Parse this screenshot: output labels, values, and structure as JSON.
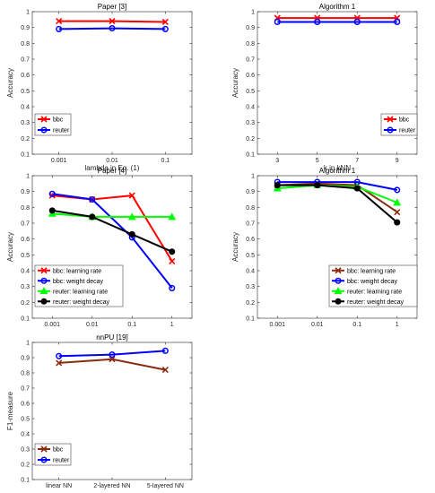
{
  "chart_data": [
    {
      "type": "line",
      "title": "Paper [3]",
      "xlabel": "lambda in Eq. (1)",
      "ylabel": "Accuracy",
      "categories": [
        "0.001",
        "0.01",
        "0.1"
      ],
      "ylim": [
        0.1,
        1
      ],
      "yticks": [
        "0.1",
        "0.2",
        "0.3",
        "0.4",
        "0.5",
        "0.6",
        "0.7",
        "0.8",
        "0.9",
        "1"
      ],
      "grid": false,
      "legend_position": "bottom-left",
      "series": [
        {
          "name": "bbc",
          "values": [
            0.94,
            0.94,
            0.935
          ],
          "color": "#ff0000",
          "marker": "x"
        },
        {
          "name": "reuter",
          "values": [
            0.89,
            0.895,
            0.89
          ],
          "color": "#0000ff",
          "marker": "o"
        }
      ]
    },
    {
      "type": "line",
      "title": "Algorithm 1",
      "xlabel": "k in kNN",
      "ylabel": "Accuracy",
      "categories": [
        "3",
        "5",
        "7",
        "9"
      ],
      "ylim": [
        0.1,
        1
      ],
      "yticks": [
        "0.1",
        "0.2",
        "0.3",
        "0.4",
        "0.5",
        "0.6",
        "0.7",
        "0.8",
        "0.9",
        "1"
      ],
      "grid": false,
      "legend_position": "bottom-right",
      "series": [
        {
          "name": "bbc",
          "values": [
            0.96,
            0.96,
            0.96,
            0.96
          ],
          "color": "#ff0000",
          "marker": "x"
        },
        {
          "name": "reuter",
          "values": [
            0.935,
            0.935,
            0.935,
            0.935
          ],
          "color": "#0000ff",
          "marker": "o"
        }
      ]
    },
    {
      "type": "line",
      "title": "Paper [4]",
      "xlabel": "",
      "ylabel": "Accuracy",
      "categories": [
        "0.001",
        "0.01",
        "0.1",
        "1"
      ],
      "ylim": [
        0.1,
        1
      ],
      "yticks": [
        "0.1",
        "0.2",
        "0.3",
        "0.4",
        "0.5",
        "0.6",
        "0.7",
        "0.8",
        "0.9",
        "1"
      ],
      "grid": false,
      "legend_position": "bottom-left",
      "series": [
        {
          "name": "bbc: learning rate",
          "values": [
            0.875,
            0.85,
            0.875,
            0.46
          ],
          "color": "#ff0000",
          "marker": "x"
        },
        {
          "name": "bbc: weight decay",
          "values": [
            0.885,
            0.85,
            0.61,
            0.29
          ],
          "color": "#0000ff",
          "marker": "o"
        },
        {
          "name": "reuter: learning rate",
          "values": [
            0.76,
            0.74,
            0.74,
            0.74
          ],
          "color": "#00ff00",
          "marker": "^"
        },
        {
          "name": "reuter: weight decay",
          "values": [
            0.78,
            0.74,
            0.63,
            0.52
          ],
          "color": "#000000",
          "marker": "o"
        }
      ]
    },
    {
      "type": "line",
      "title": "Algorithm 1",
      "xlabel": "",
      "ylabel": "Accuracy",
      "categories": [
        "0.001",
        "0.01",
        "0.1",
        "1"
      ],
      "ylim": [
        0.1,
        1
      ],
      "yticks": [
        "0.1",
        "0.2",
        "0.3",
        "0.4",
        "0.5",
        "0.6",
        "0.7",
        "0.8",
        "0.9",
        "1"
      ],
      "grid": false,
      "legend_position": "bottom-right",
      "series": [
        {
          "name": "bbc: learning rate",
          "values": [
            0.94,
            0.95,
            0.94,
            0.77
          ],
          "color": "#8b2b0e",
          "marker": "x"
        },
        {
          "name": "bbc: weight decay",
          "values": [
            0.96,
            0.96,
            0.96,
            0.91
          ],
          "color": "#0000ff",
          "marker": "o"
        },
        {
          "name": "reuter: learning rate",
          "values": [
            0.92,
            0.94,
            0.93,
            0.83
          ],
          "color": "#00ff00",
          "marker": "^"
        },
        {
          "name": "reuter: weight decay",
          "values": [
            0.94,
            0.94,
            0.92,
            0.705
          ],
          "color": "#000000",
          "marker": "o"
        }
      ]
    },
    {
      "type": "line",
      "title": "nnPU [19]",
      "xlabel": "",
      "ylabel": "F1-measure",
      "categories": [
        "linear NN",
        "2-layered NN",
        "5-layered NN"
      ],
      "ylim": [
        0.1,
        1
      ],
      "yticks": [
        "0.1",
        "0.2",
        "0.3",
        "0.4",
        "0.5",
        "0.6",
        "0.7",
        "0.8",
        "0.9",
        "1"
      ],
      "grid": false,
      "legend_position": "bottom-left",
      "series": [
        {
          "name": "bbc",
          "values": [
            0.865,
            0.89,
            0.82
          ],
          "color": "#8b2b0e",
          "marker": "x"
        },
        {
          "name": "reuter",
          "values": [
            0.91,
            0.92,
            0.945
          ],
          "color": "#0000ff",
          "marker": "o"
        }
      ]
    }
  ]
}
